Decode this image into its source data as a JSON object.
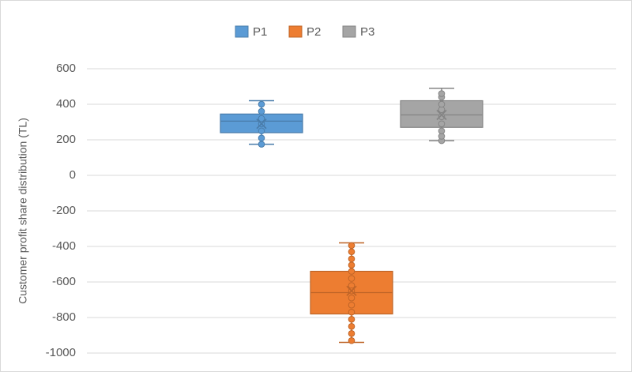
{
  "chart_data": {
    "type": "box",
    "y_label": "Customer profit share distribution (TL)",
    "ylim": [
      -1000,
      600
    ],
    "yticks": [
      -1000,
      -800,
      -600,
      -400,
      -200,
      0,
      200,
      400,
      600
    ],
    "grid": true,
    "legend": "top",
    "series": [
      {
        "name": "P1",
        "color": "#5b9bd5",
        "min": 175,
        "q1": 240,
        "median": 305,
        "q3": 345,
        "max": 420,
        "mean": 290,
        "points": [
          175,
          210,
          250,
          290,
          320,
          360,
          400
        ]
      },
      {
        "name": "P2",
        "color": "#ed7d31",
        "min": -940,
        "q1": -780,
        "median": -660,
        "q3": -540,
        "max": -380,
        "mean": -650,
        "points": [
          -395,
          -430,
          -470,
          -505,
          -540,
          -580,
          -620,
          -650,
          -690,
          -730,
          -770,
          -810,
          -850,
          -890,
          -930
        ]
      },
      {
        "name": "P3",
        "color": "#a5a5a5",
        "min": 195,
        "q1": 270,
        "median": 340,
        "q3": 420,
        "max": 490,
        "mean": 340,
        "points": [
          195,
          220,
          250,
          290,
          330,
          370,
          400,
          440,
          460
        ]
      }
    ]
  }
}
